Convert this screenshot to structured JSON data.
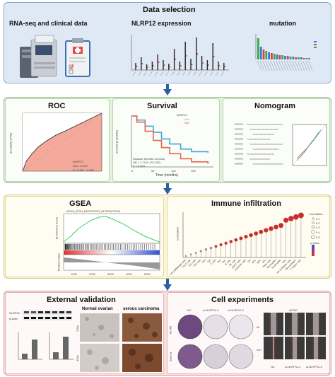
{
  "data_selection": {
    "title": "Data selection",
    "rna_title": "RNA-seq and clinical data",
    "nlrp12_title": "NLRP12 expression",
    "mutation_title": "mutation"
  },
  "roc": {
    "title": "ROC",
    "ylabel": "Sensitivity (TPR)",
    "legend_line1": "NLRP12",
    "legend_line2": "AUC: 0.629",
    "legend_line3": "CI: 0.561 - 0.696"
  },
  "survival": {
    "title": "Survival",
    "ylabel": "Survival probability",
    "xlabel": "Time (months)",
    "legend_title": "NLRP12",
    "legend_low": "Low",
    "legend_high": "High",
    "note1": "Disease Specific Survival",
    "note2": "HR = 1.79 (1.29-2.28)",
    "note3": "P < 0.001",
    "xticks": [
      "0",
      "50",
      "100",
      "150"
    ]
  },
  "nomogram": {
    "title": "Nomogram"
  },
  "gsea": {
    "title": "GSEA",
    "plot_title": "KEGG_ECM_RECEPTOR_INTERACTION",
    "ylabel_top": "Enrichment Score",
    "ylabel_bottom": "Ranked metric",
    "xticks": [
      "1000",
      "2000",
      "3000",
      "4000",
      "5000"
    ]
  },
  "immune": {
    "title": "Immune infiltration",
    "ylabel": "Correlation",
    "legend_title": "Correlation",
    "legend_items": [
      "0.1",
      "0.2",
      "0.3",
      "0.4",
      "0.5"
    ],
    "pvalue_title": "p.value",
    "categories": [
      "NK CD56bright cells",
      "Th17 cells",
      "Th1 cells",
      "Th2 cells",
      "TFH",
      "Tgd",
      "T cells",
      "Tcm",
      "Tem",
      "B cells",
      "NK cells",
      "CD8 T cells",
      "Cytotoxic cells",
      "DC",
      "aDC",
      "pDC",
      "iDC",
      "Mast cells",
      "Neutrophils",
      "Eosinophils",
      "Treg",
      "NK CD56dim cells",
      "Macrophages",
      "T helper cells"
    ]
  },
  "external": {
    "title": "External validation",
    "wb_label1": "NLRP12",
    "wb_label2": "β-Actin",
    "normal_label": "Normal ovarian",
    "serous_label": "serous carcinoma",
    "mag1": "200x",
    "mag2": "400x"
  },
  "cell": {
    "title": "Cell experiments",
    "col_nc": "NC",
    "col_si1": "si-NLRP12-1",
    "col_si2": "si-NLRP12-2",
    "row_a2780": "A2780",
    "row_skov3": "SKOV3",
    "wound_title": "A2780",
    "time0": "0h",
    "time24": "24h",
    "bottom_nc": "NC",
    "bottom_si1": "si-NLRP12-1",
    "bottom_si2": "si-NLRP12-2"
  }
}
